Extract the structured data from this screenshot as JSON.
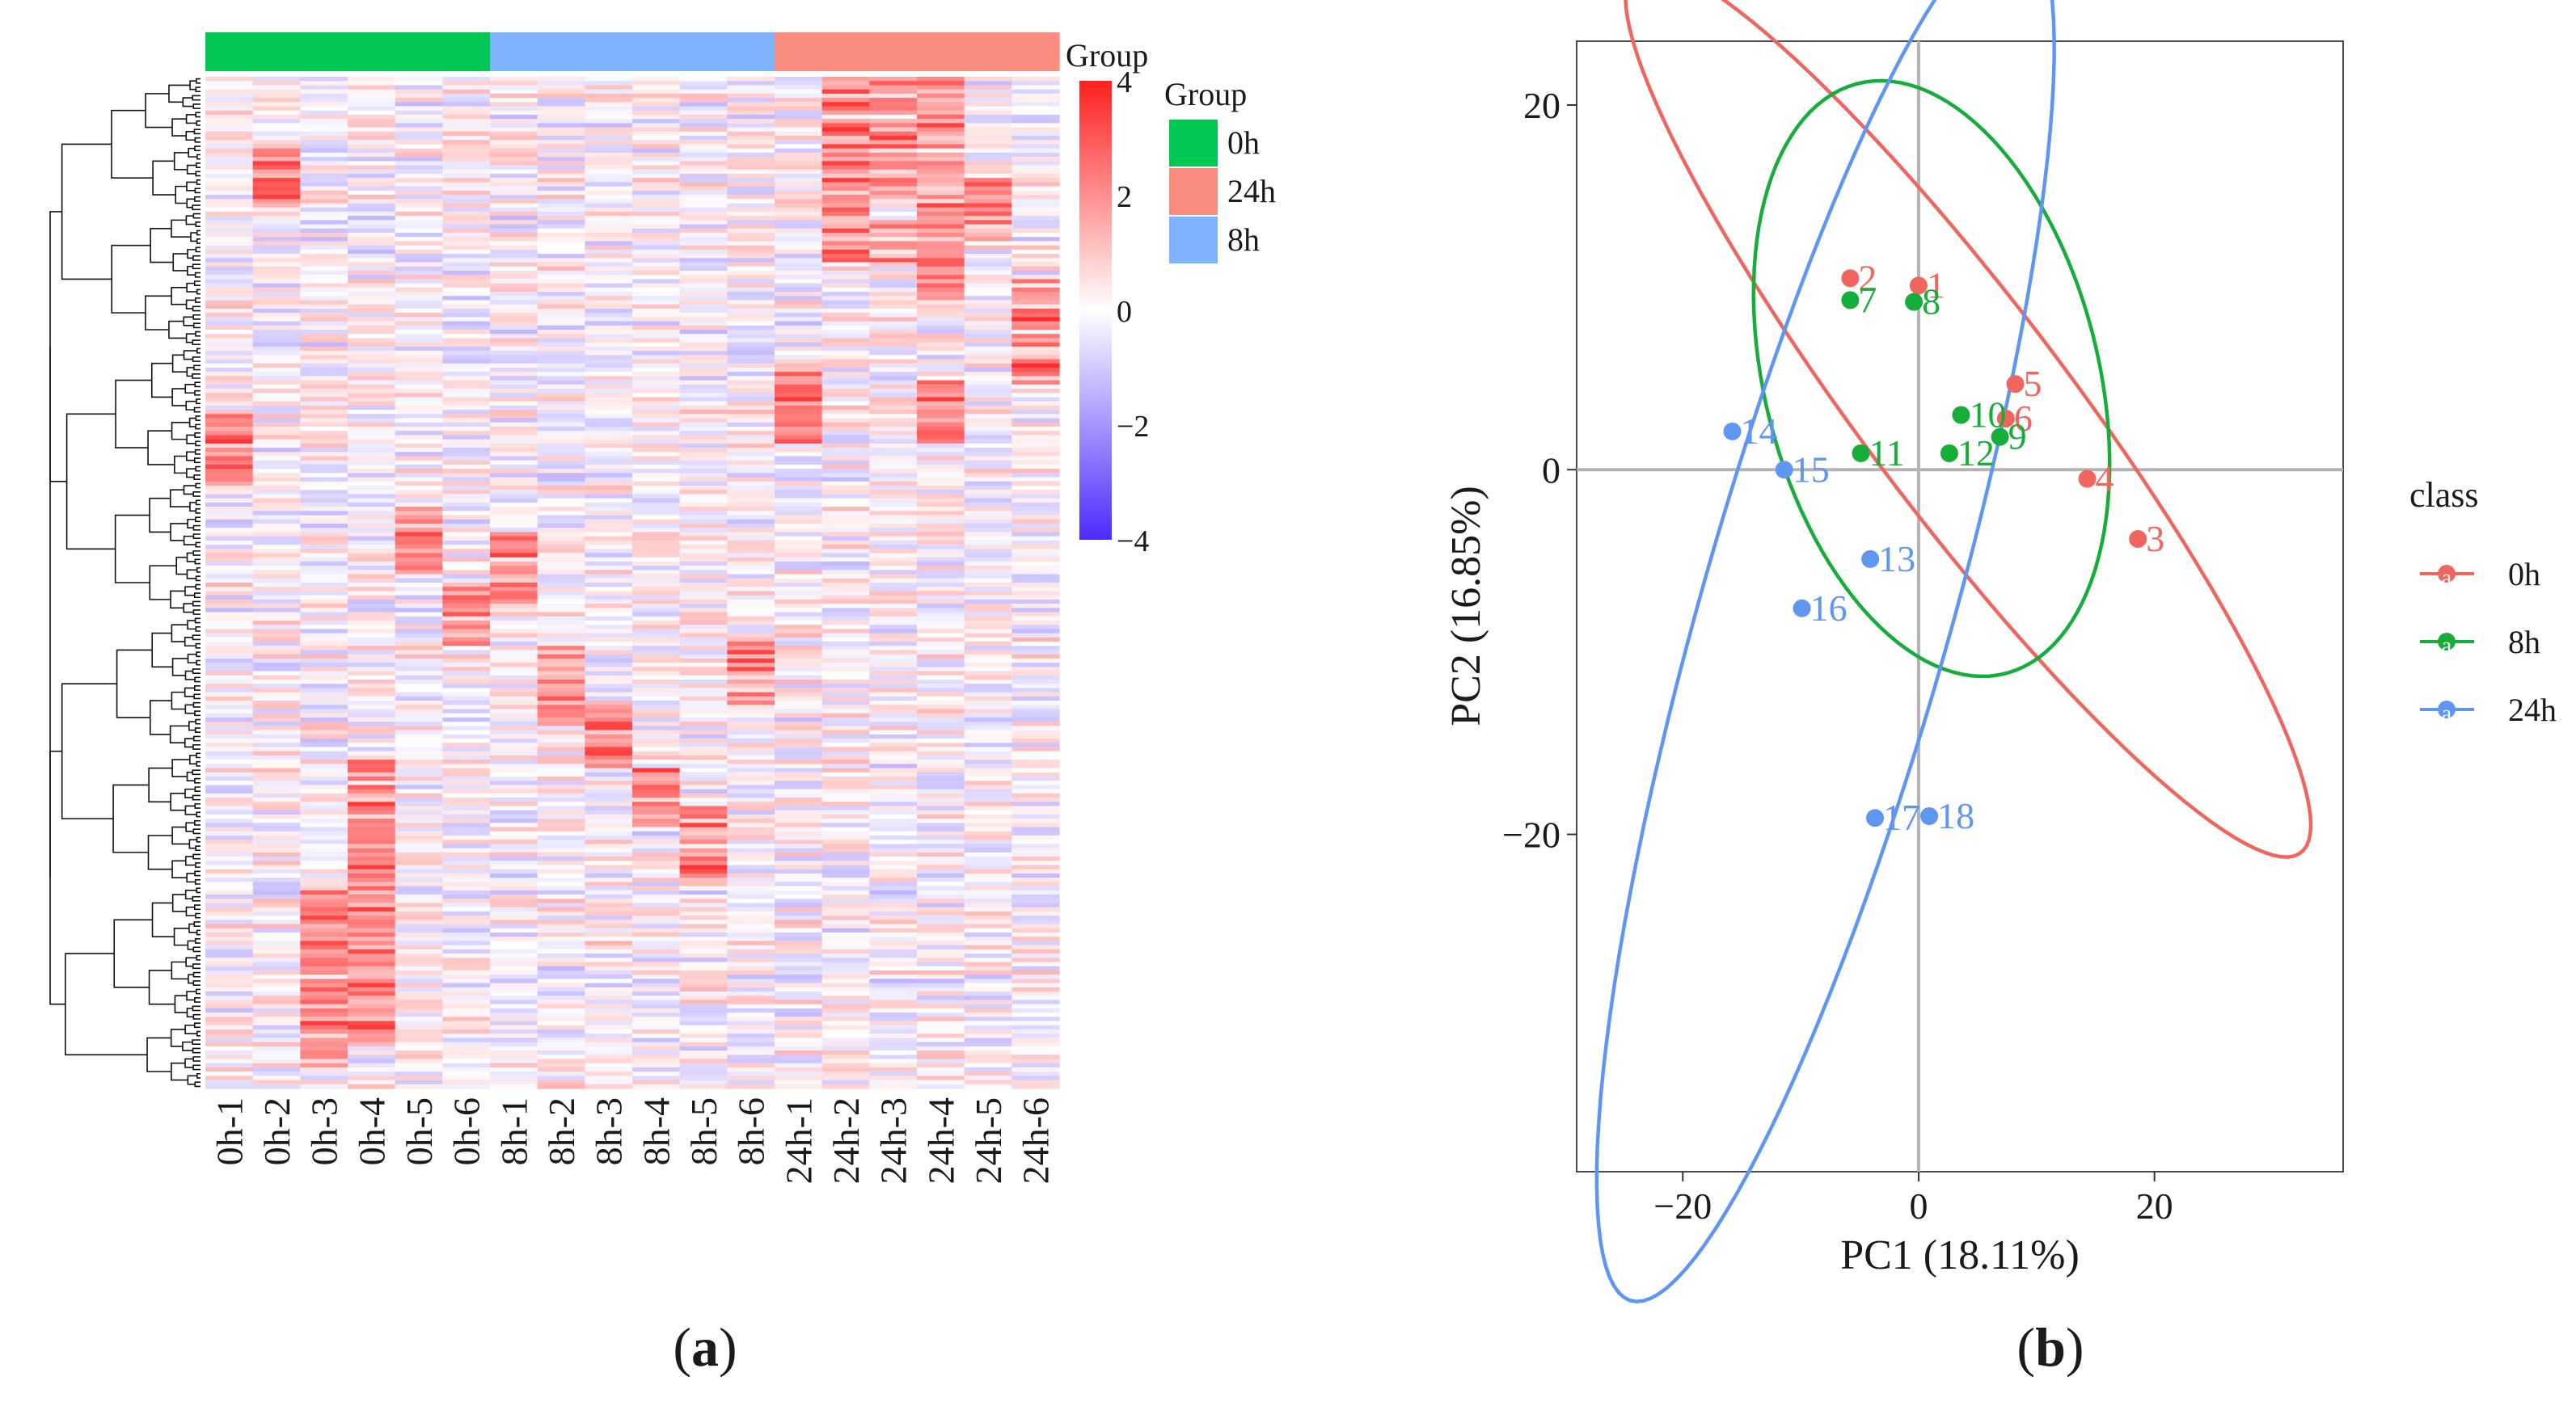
{
  "chart_data": [
    {
      "type": "heatmap",
      "panel_label": "a",
      "samples": [
        "0h-1",
        "0h-2",
        "0h-3",
        "0h-4",
        "0h-5",
        "0h-6",
        "8h-1",
        "8h-2",
        "8h-3",
        "8h-4",
        "8h-5",
        "8h-6",
        "24h-1",
        "24h-2",
        "24h-3",
        "24h-4",
        "24h-5",
        "24h-6"
      ],
      "sample_groups": [
        "0h",
        "0h",
        "0h",
        "0h",
        "0h",
        "0h",
        "8h",
        "8h",
        "8h",
        "8h",
        "8h",
        "8h",
        "24h",
        "24h",
        "24h",
        "24h",
        "24h",
        "24h"
      ],
      "annotation_title": "Group",
      "legend_title": "Group",
      "legend_entries": [
        {
          "label": "0h",
          "color": "#00C853"
        },
        {
          "label": "24h",
          "color": "#FA8C80"
        },
        {
          "label": "8h",
          "color": "#7FB2FF"
        }
      ],
      "colorscale": {
        "min": -4,
        "max": 4,
        "ticks": [
          "4",
          "2",
          "0",
          "−2",
          "−4"
        ],
        "low": "#4B2BFF",
        "mid": "#FFFFFF",
        "high": "#FF2020"
      },
      "n_rows": 240,
      "seed": 7,
      "row_dendrogram": true
    },
    {
      "type": "scatter",
      "panel_label": "b",
      "xlabel": "PC1 (18.11%)",
      "ylabel": "PC2 (16.85%)",
      "xlim": [
        -29,
        36
      ],
      "ylim": [
        -38.5,
        23.5
      ],
      "xticks": [
        -20,
        0,
        20
      ],
      "yticks": [
        20,
        0,
        -20
      ],
      "xtick_labels": [
        "−20",
        "0",
        "20"
      ],
      "ytick_labels": [
        "20",
        "0",
        "−20"
      ],
      "legend_title": "class",
      "legend_marker_text": "a",
      "series": [
        {
          "name": "0h",
          "color": "#F0665E",
          "points": [
            {
              "label": "1",
              "x": 0,
              "y": 10.1
            },
            {
              "label": "2",
              "x": -5.8,
              "y": 10.5
            },
            {
              "label": "3",
              "x": 18.6,
              "y": -3.8
            },
            {
              "label": "4",
              "x": 14.3,
              "y": -0.5
            },
            {
              "label": "5",
              "x": 8.2,
              "y": 4.7
            },
            {
              "label": "6",
              "x": 7.4,
              "y": 2.8
            }
          ],
          "ellipse": {
            "cx": 4.2,
            "cy": 3.2,
            "a": 37.3,
            "b": 7.1,
            "angle_deg": -39.7
          }
        },
        {
          "name": "8h",
          "color": "#16AD3B",
          "points": [
            {
              "label": "7",
              "x": -5.8,
              "y": 9.3
            },
            {
              "label": "8",
              "x": -0.4,
              "y": 9.2
            },
            {
              "label": "9",
              "x": 6.9,
              "y": 1.8
            },
            {
              "label": "10",
              "x": 3.6,
              "y": 3.0
            },
            {
              "label": "11",
              "x": -4.9,
              "y": 0.9
            },
            {
              "label": "12",
              "x": 2.6,
              "y": 0.9
            }
          ],
          "ellipse": {
            "cx": 1.1,
            "cy": 5.0,
            "a": 17.9,
            "b": 13.2,
            "angle_deg": -52.7
          }
        },
        {
          "name": "24h",
          "color": "#5E96F2",
          "points": [
            {
              "label": "13",
              "x": -4.1,
              "y": -4.9
            },
            {
              "label": "14",
              "x": -15.8,
              "y": 2.1
            },
            {
              "label": "15",
              "x": -11.4,
              "y": 0.0
            },
            {
              "label": "16",
              "x": -9.9,
              "y": -7.6
            },
            {
              "label": "17",
              "x": -3.7,
              "y": -19.1
            },
            {
              "label": "18",
              "x": 0.9,
              "y": -19.0
            }
          ],
          "ellipse": {
            "cx": -7.9,
            "cy": -7.9,
            "a": 41.2,
            "b": 10.1,
            "angle_deg": 65.5
          }
        }
      ]
    }
  ]
}
